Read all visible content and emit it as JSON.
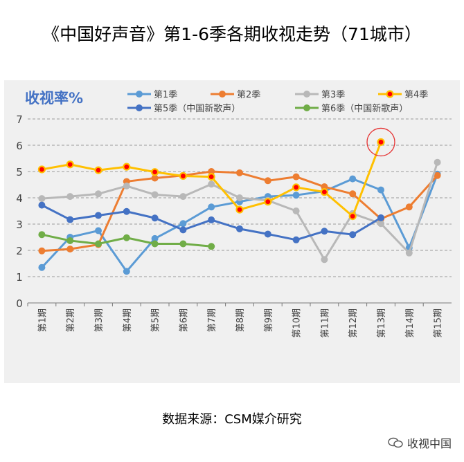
{
  "title": "《中国好声音》第1-6季各期收视走势（71城市）",
  "source": "数据来源：CSM媒介研究",
  "watermark": "收视中国",
  "chart_data": {
    "type": "line",
    "ylabel": "收视率%",
    "ylim": [
      0,
      7
    ],
    "yticks": [
      0,
      1,
      2,
      3,
      4,
      5,
      6,
      7
    ],
    "grid": true,
    "legend_position": "top",
    "categories": [
      "第1期",
      "第2期",
      "第3期",
      "第4期",
      "第5期",
      "第6期",
      "第7期",
      "第8期",
      "第9期",
      "第10期",
      "第11期",
      "第12期",
      "第13期",
      "第14期",
      "第15期"
    ],
    "series": [
      {
        "name": "第1季",
        "color": "#5b9bd5",
        "values": [
          1.35,
          2.5,
          2.75,
          1.2,
          2.45,
          3.02,
          3.65,
          3.85,
          4.05,
          4.1,
          4.25,
          4.72,
          4.3,
          2.1,
          4.9
        ]
      },
      {
        "name": "第2季",
        "color": "#ed7d31",
        "values": [
          1.98,
          2.05,
          2.22,
          4.62,
          4.75,
          4.85,
          5.0,
          4.95,
          4.65,
          4.8,
          4.42,
          4.15,
          3.2,
          3.65,
          4.85
        ]
      },
      {
        "name": "第3季",
        "color": "#b8b8b8",
        "values": [
          3.97,
          4.05,
          4.15,
          4.45,
          4.12,
          4.05,
          4.52,
          4.0,
          3.9,
          3.5,
          1.65,
          3.4,
          3.02,
          1.9,
          5.35
        ]
      },
      {
        "name": "第4季",
        "color": "#ffc000",
        "values": [
          5.08,
          5.27,
          5.05,
          5.18,
          4.98,
          4.83,
          4.8,
          3.55,
          3.85,
          4.4,
          4.22,
          3.3,
          6.12,
          null,
          null
        ]
      },
      {
        "name": "第5季（中国新歌声）",
        "color": "#4472c4",
        "values": [
          3.72,
          3.17,
          3.33,
          3.48,
          3.23,
          2.78,
          3.16,
          2.82,
          2.62,
          2.4,
          2.73,
          2.6,
          3.24,
          null,
          null
        ]
      },
      {
        "name": "第6季（中国新歌声）",
        "color": "#70ad47",
        "values": [
          2.6,
          2.37,
          2.25,
          2.48,
          2.25,
          2.25,
          2.15,
          null,
          null,
          null,
          null,
          null,
          null,
          null,
          null
        ]
      }
    ],
    "highlight": {
      "series": "第4季",
      "category": "第13期"
    }
  }
}
